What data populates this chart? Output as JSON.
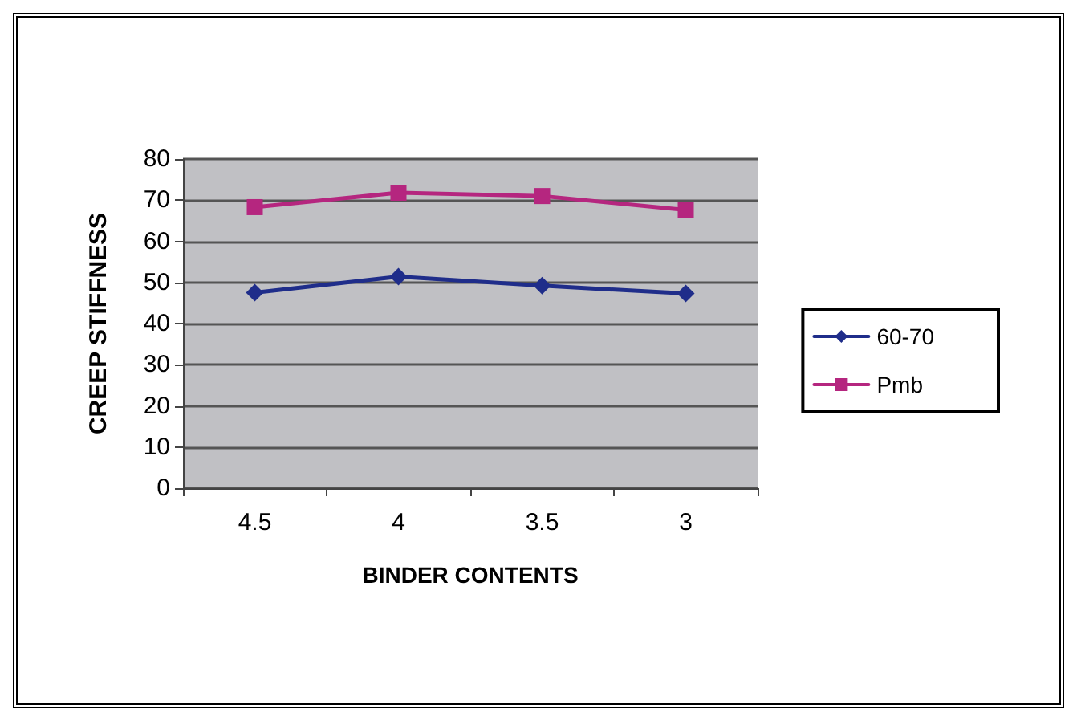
{
  "chart_data": {
    "type": "line",
    "xlabel": "BINDER CONTENTS",
    "ylabel": "CREEP STIFFNESS",
    "categories": [
      "4.5",
      "4",
      "3.5",
      "3"
    ],
    "series": [
      {
        "name": "60-70",
        "color": "#1f2d8a",
        "values": [
          47.5,
          51.4,
          49.2,
          47.3
        ],
        "marker": "diamond"
      },
      {
        "name": "Pmb",
        "color": "#b5267f",
        "values": [
          68.3,
          71.8,
          71,
          67.6
        ],
        "marker": "square"
      }
    ],
    "ylim": [
      0,
      80
    ],
    "yticks": [
      0,
      10,
      20,
      30,
      40,
      50,
      60,
      70,
      80
    ],
    "grid": "y",
    "legend": "right",
    "line_style": "solid"
  }
}
